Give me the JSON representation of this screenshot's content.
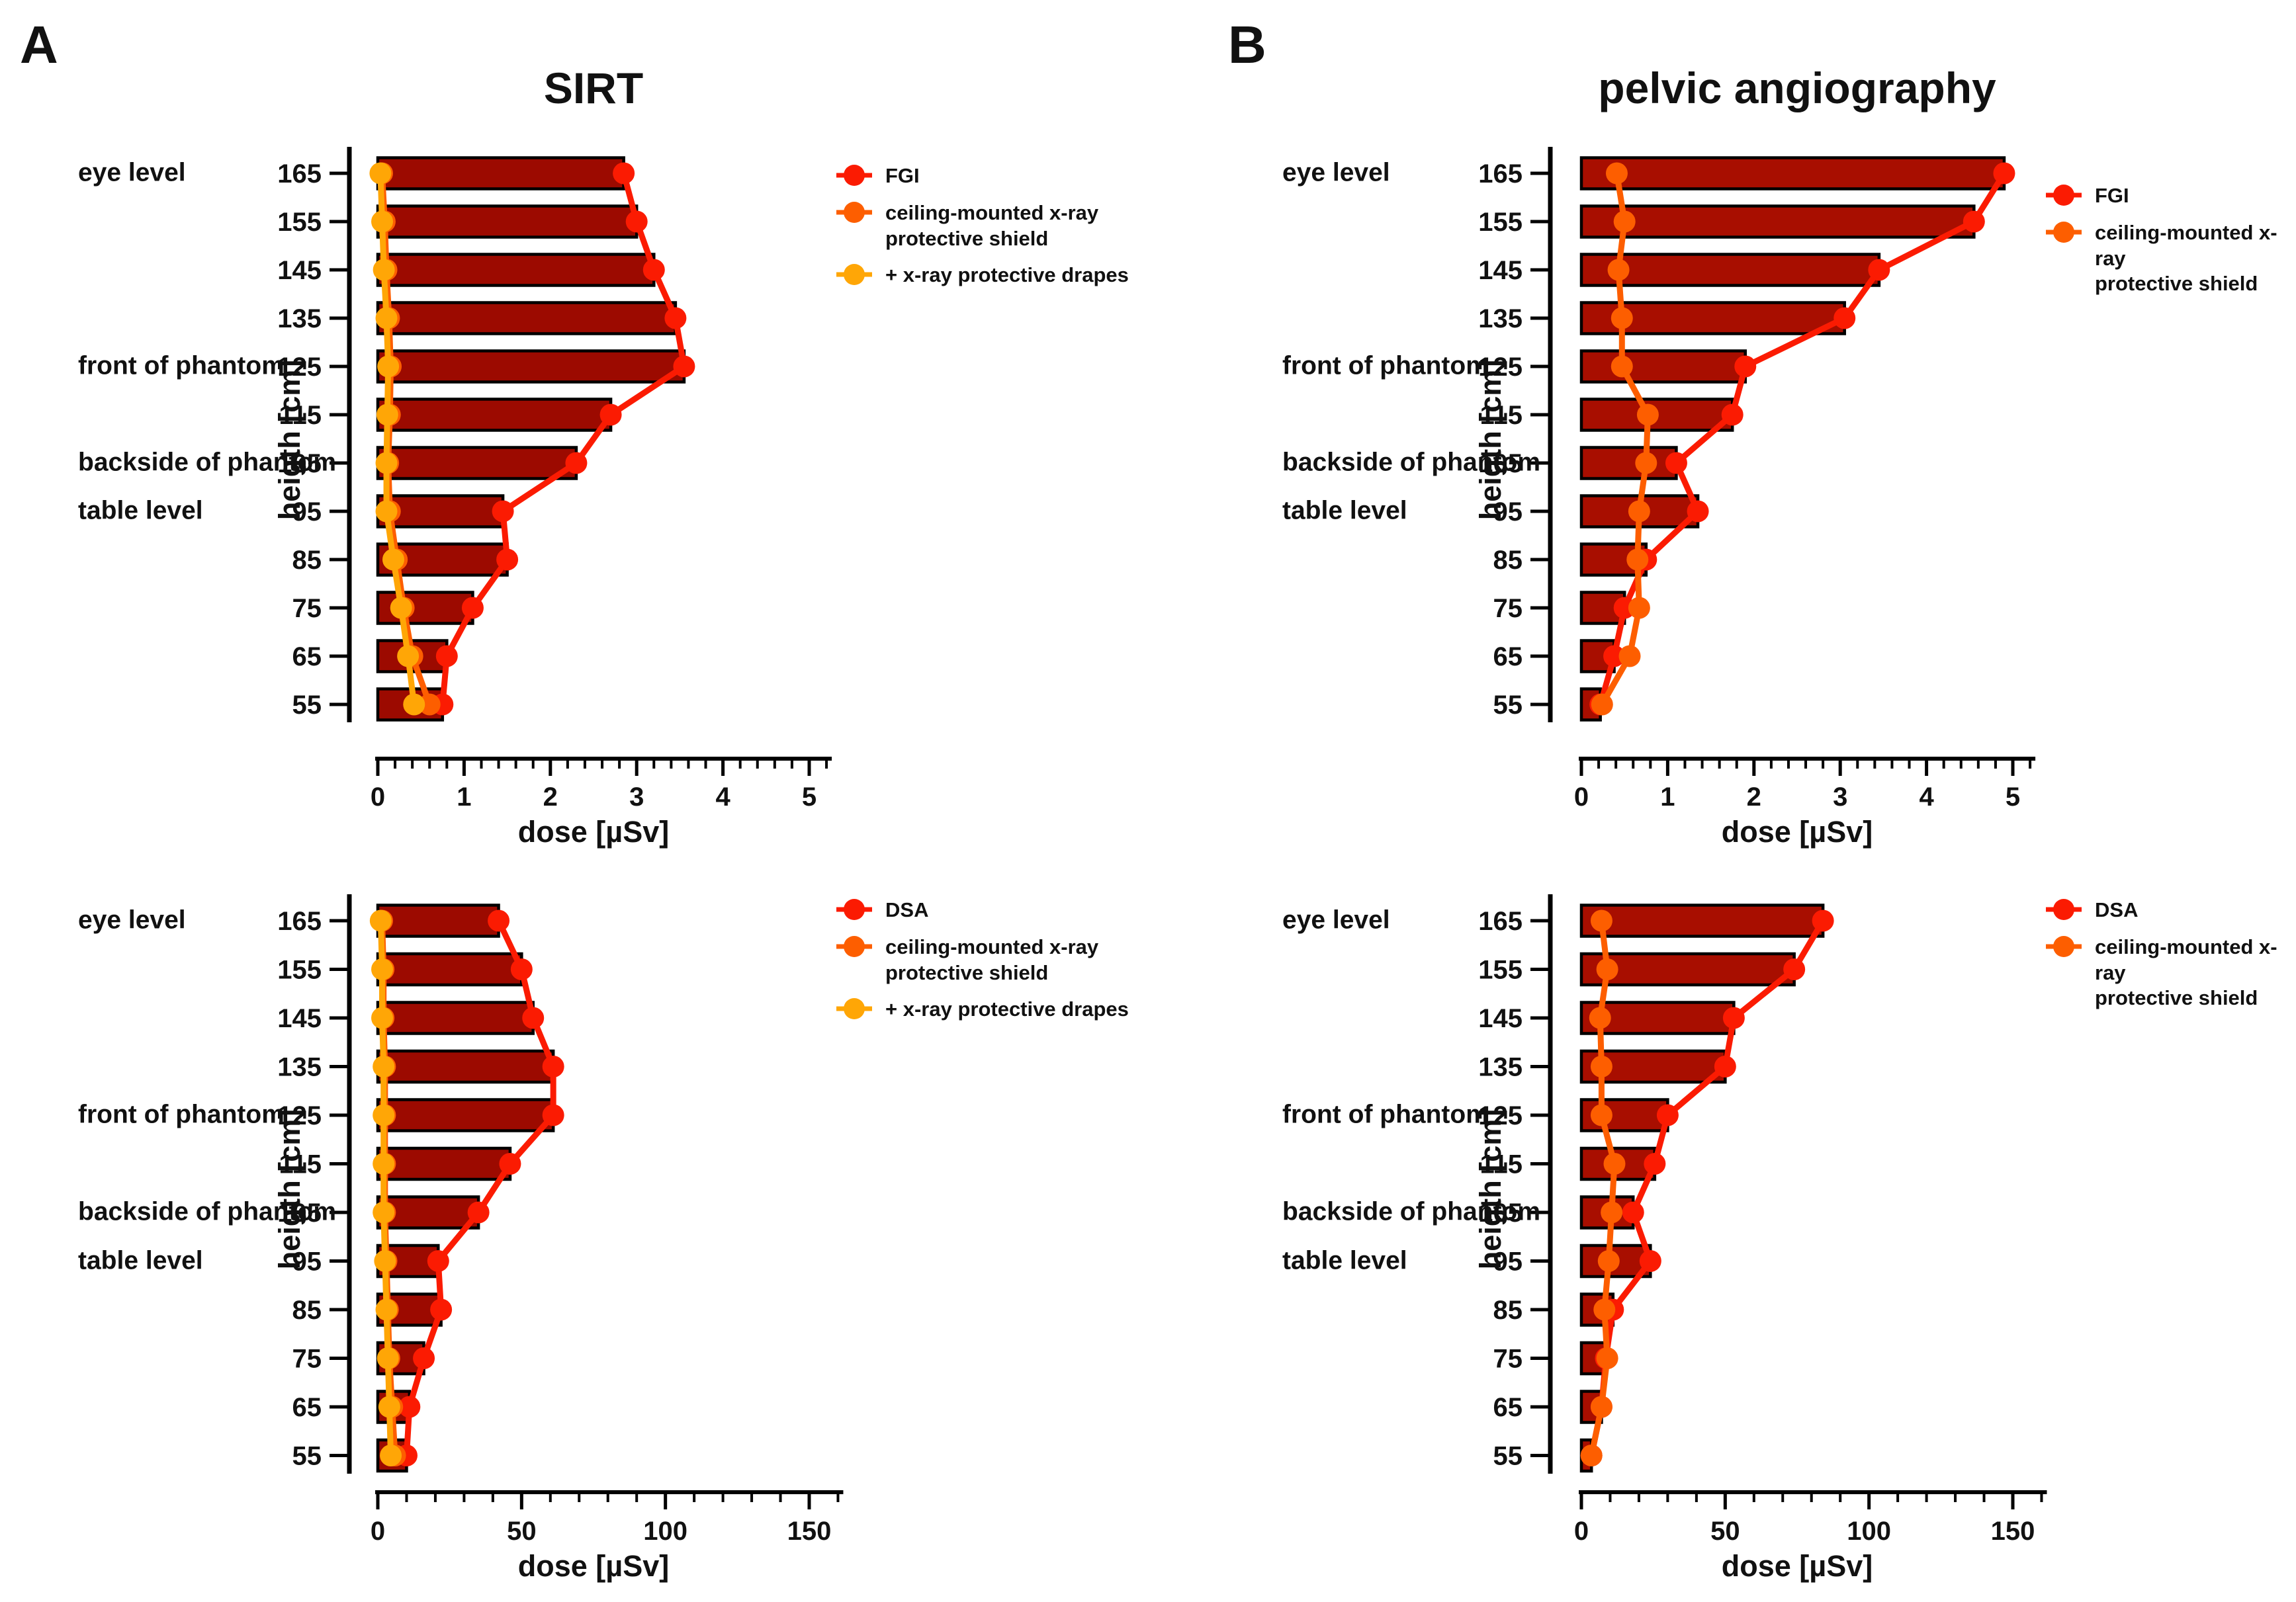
{
  "figure": {
    "panel_a_letter": "A",
    "panel_b_letter": "B",
    "background_color": "#ffffff",
    "text_color": "#111111"
  },
  "chart_data": [
    {
      "id": "sirt-fgi",
      "panel": "A",
      "position": "top-left",
      "type": "bar",
      "title": "SIRT",
      "xlabel": "dose [µSv]",
      "ylabel": "heigth [cm]",
      "xlim": [
        0,
        5
      ],
      "xticks": [
        0,
        1,
        2,
        3,
        4,
        5
      ],
      "x_minor_step": 0.2,
      "grid": false,
      "legend_position": "right",
      "categories_heights_cm": [
        165,
        155,
        145,
        135,
        125,
        115,
        105,
        95,
        85,
        75,
        65,
        55
      ],
      "bar_series": {
        "name": "FGI",
        "bar_color": "#9C0A00",
        "line_color": "#FB1B02",
        "values": [
          2.85,
          3.0,
          3.2,
          3.45,
          3.55,
          2.7,
          2.3,
          1.45,
          1.5,
          1.1,
          0.8,
          0.75
        ]
      },
      "overlay_series": [
        {
          "name": "ceiling-mounted x-ray\nprotective shield",
          "color": "#FD5E00",
          "values": [
            0.05,
            0.08,
            0.1,
            0.13,
            0.15,
            0.14,
            0.12,
            0.14,
            0.22,
            0.3,
            0.4,
            0.6
          ]
        },
        {
          "name": "+ x-ray protective drapes",
          "color": "#FFA606",
          "values": [
            0.03,
            0.05,
            0.07,
            0.1,
            0.12,
            0.11,
            0.1,
            0.1,
            0.18,
            0.27,
            0.35,
            0.42
          ]
        }
      ],
      "annotations": [
        {
          "label": "eye level",
          "height": 165
        },
        {
          "label": "front of phantom",
          "height": 125
        },
        {
          "label": "backside of phantom",
          "height": 105
        },
        {
          "label": "table level",
          "height": 95
        }
      ]
    },
    {
      "id": "sirt-dsa",
      "panel": "A",
      "position": "bottom-left",
      "type": "bar",
      "title": "",
      "xlabel": "dose [µSv]",
      "ylabel": "heigth [cm]",
      "xlim": [
        0,
        150
      ],
      "xticks": [
        0,
        50,
        100,
        150
      ],
      "x_minor_step": 10,
      "grid": false,
      "legend_position": "right",
      "categories_heights_cm": [
        165,
        155,
        145,
        135,
        125,
        115,
        105,
        95,
        85,
        75,
        65,
        55
      ],
      "bar_series": {
        "name": "DSA",
        "bar_color": "#9C0A00",
        "line_color": "#FB1B02",
        "values": [
          42,
          50,
          54,
          61,
          61,
          46,
          35,
          21,
          22,
          16,
          11,
          10
        ]
      },
      "overlay_series": [
        {
          "name": "ceiling-mounted x-ray\nprotective shield",
          "color": "#FD5E00",
          "values": [
            1.5,
            2,
            2,
            2.5,
            2.5,
            2.5,
            2.5,
            3,
            3.5,
            4,
            5,
            6
          ]
        },
        {
          "name": "+ x-ray protective drapes",
          "color": "#FFA606",
          "values": [
            1,
            1.5,
            1.5,
            2,
            2,
            2,
            2,
            2.5,
            3,
            3.5,
            4,
            4.5
          ]
        }
      ],
      "annotations": [
        {
          "label": "eye level",
          "height": 165
        },
        {
          "label": "front of phantom",
          "height": 125
        },
        {
          "label": "backside of phantom",
          "height": 105
        },
        {
          "label": "table level",
          "height": 95
        }
      ]
    },
    {
      "id": "pelvic-angiography-fgi",
      "panel": "B",
      "position": "top-right",
      "type": "bar",
      "title": "pelvic angiography",
      "xlabel": "dose [µSv]",
      "ylabel": "heigth [cm]",
      "xlim": [
        0,
        5
      ],
      "xticks": [
        0,
        1,
        2,
        3,
        4,
        5
      ],
      "x_minor_step": 0.2,
      "grid": false,
      "legend_position": "right",
      "categories_heights_cm": [
        165,
        155,
        145,
        135,
        125,
        115,
        105,
        95,
        85,
        75,
        65,
        55
      ],
      "bar_series": {
        "name": "FGI",
        "bar_color": "#A80E00",
        "line_color": "#FB1B02",
        "values": [
          4.9,
          4.55,
          3.45,
          3.05,
          1.9,
          1.75,
          1.1,
          1.35,
          0.75,
          0.5,
          0.38,
          0.22
        ]
      },
      "overlay_series": [
        {
          "name": "ceiling-mounted x-ray\nprotective shield",
          "color": "#FD5E00",
          "values": [
            0.41,
            0.5,
            0.43,
            0.47,
            0.47,
            0.77,
            0.75,
            0.67,
            0.65,
            0.67,
            0.56,
            0.24
          ]
        }
      ],
      "annotations": [
        {
          "label": "eye level",
          "height": 165
        },
        {
          "label": "front of phantom",
          "height": 125
        },
        {
          "label": "backside of phantom",
          "height": 105
        },
        {
          "label": "table level",
          "height": 95
        }
      ]
    },
    {
      "id": "pelvic-angiography-dsa",
      "panel": "B",
      "position": "bottom-right",
      "type": "bar",
      "title": "",
      "xlabel": "dose [µSv]",
      "ylabel": "heigth [cm]",
      "xlim": [
        0,
        150
      ],
      "xticks": [
        0,
        50,
        100,
        150
      ],
      "x_minor_step": 10,
      "grid": false,
      "legend_position": "right",
      "categories_heights_cm": [
        165,
        155,
        145,
        135,
        125,
        115,
        105,
        95,
        85,
        75,
        65,
        55
      ],
      "bar_series": {
        "name": "DSA",
        "bar_color": "#A80E00",
        "line_color": "#FB1B02",
        "values": [
          84,
          74,
          53,
          50,
          30,
          25.5,
          18,
          24,
          11,
          8.5,
          7,
          3.5
        ]
      },
      "overlay_series": [
        {
          "name": "ceiling-mounted x-ray\nprotective shield",
          "color": "#FD5E00",
          "values": [
            7,
            9,
            6.5,
            7,
            7,
            11.5,
            10.5,
            9.5,
            8,
            9,
            7,
            3.5
          ]
        }
      ],
      "annotations": [
        {
          "label": "eye level",
          "height": 165
        },
        {
          "label": "front of phantom",
          "height": 125
        },
        {
          "label": "backside of phantom",
          "height": 105
        },
        {
          "label": "table level",
          "height": 95
        }
      ]
    }
  ]
}
